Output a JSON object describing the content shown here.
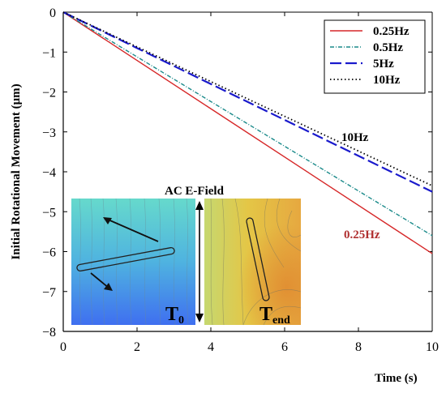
{
  "chart_data": {
    "type": "line",
    "xlabel": "Time (s)",
    "ylabel": "Initial Rotational Movement (μm)",
    "xlim": [
      0,
      10
    ],
    "ylim": [
      -8,
      0
    ],
    "xticks": [
      "0",
      "2",
      "4",
      "6",
      "8",
      "10"
    ],
    "yticks": [
      "0",
      "−1",
      "−2",
      "−3",
      "−4",
      "−5",
      "−6",
      "−7",
      "−8"
    ],
    "grid": false,
    "legend_position": "top-right",
    "series": [
      {
        "name": "0.25Hz",
        "color": "#d62728",
        "style": "solid",
        "x": [
          0,
          10
        ],
        "y": [
          0,
          -6.05
        ]
      },
      {
        "name": "0.5Hz",
        "color": "#1a8a8a",
        "style": "dash-dot",
        "x": [
          0,
          10
        ],
        "y": [
          0,
          -5.6
        ]
      },
      {
        "name": "5Hz",
        "color": "#1a1acc",
        "style": "long-dash",
        "x": [
          0,
          10
        ],
        "y": [
          0,
          -4.5
        ]
      },
      {
        "name": "10Hz",
        "color": "#000000",
        "style": "dotted",
        "x": [
          0,
          10
        ],
        "y": [
          0,
          -4.35
        ]
      }
    ],
    "annotations": [
      {
        "text": "10Hz",
        "color": "#000000"
      },
      {
        "text": "0.25Hz",
        "color": "#b03030"
      }
    ],
    "inset": {
      "field_label": "AC E-Field",
      "left_label": "T",
      "left_sub": "0",
      "right_label": "T",
      "right_sub": "end"
    }
  }
}
